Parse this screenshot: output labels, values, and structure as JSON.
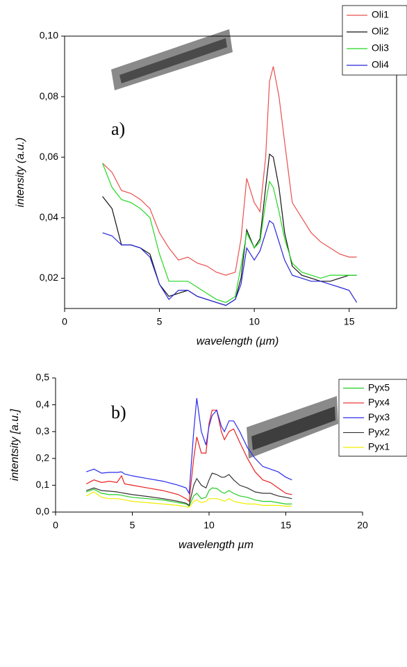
{
  "chart_data": [
    {
      "type": "line",
      "annotation": "a)",
      "xlabel": "wavelength (µm)",
      "ylabel": "intensity (a.u.)",
      "xlim": [
        0,
        17.5
      ],
      "xticks": [
        0,
        5,
        10,
        15
      ],
      "ylim": [
        0.01,
        0.1
      ],
      "yticks": [
        {
          "value": 0.02,
          "label": "0,02"
        },
        {
          "value": 0.04,
          "label": "0,04"
        },
        {
          "value": 0.06,
          "label": "0,06"
        },
        {
          "value": 0.08,
          "label": "0,08"
        },
        {
          "value": 0.1,
          "label": "0,10"
        }
      ],
      "x": [
        2,
        2.5,
        3,
        3.5,
        4,
        4.5,
        5,
        5.5,
        6,
        6.5,
        7,
        7.5,
        8,
        8.5,
        9,
        9.3,
        9.6,
        10,
        10.3,
        10.6,
        10.8,
        11,
        11.3,
        11.6,
        12,
        12.5,
        13,
        13.5,
        14,
        14.5,
        15,
        15.4
      ],
      "series": [
        {
          "name": "Oli1",
          "color": "#e8504c",
          "values": [
            0.058,
            0.055,
            0.049,
            0.048,
            0.046,
            0.043,
            0.035,
            0.03,
            0.026,
            0.027,
            0.025,
            0.024,
            0.022,
            0.021,
            0.022,
            0.033,
            0.053,
            0.045,
            0.042,
            0.06,
            0.085,
            0.09,
            0.08,
            0.065,
            0.045,
            0.04,
            0.035,
            0.032,
            0.03,
            0.028,
            0.027,
            0.027
          ]
        },
        {
          "name": "Oli2",
          "color": "#111111",
          "values": [
            0.047,
            0.043,
            0.031,
            0.031,
            0.03,
            0.028,
            0.018,
            0.014,
            0.015,
            0.016,
            0.014,
            0.013,
            0.012,
            0.011,
            0.013,
            0.02,
            0.036,
            0.03,
            0.033,
            0.05,
            0.061,
            0.06,
            0.05,
            0.035,
            0.024,
            0.021,
            0.02,
            0.019,
            0.019,
            0.02,
            0.021,
            0.021
          ]
        },
        {
          "name": "Oli3",
          "color": "#22d822",
          "values": [
            0.058,
            0.05,
            0.046,
            0.045,
            0.043,
            0.04,
            0.028,
            0.019,
            0.019,
            0.019,
            0.017,
            0.015,
            0.013,
            0.012,
            0.014,
            0.024,
            0.035,
            0.03,
            0.032,
            0.045,
            0.052,
            0.05,
            0.042,
            0.033,
            0.025,
            0.022,
            0.021,
            0.02,
            0.021,
            0.021,
            0.021,
            0.021
          ]
        },
        {
          "name": "Oli4",
          "color": "#2424d8",
          "values": [
            0.035,
            0.034,
            0.031,
            0.031,
            0.03,
            0.027,
            0.018,
            0.013,
            0.016,
            0.016,
            0.014,
            0.013,
            0.012,
            0.011,
            0.013,
            0.018,
            0.03,
            0.026,
            0.029,
            0.035,
            0.039,
            0.038,
            0.032,
            0.026,
            0.021,
            0.02,
            0.019,
            0.019,
            0.018,
            0.017,
            0.016,
            0.012
          ]
        }
      ]
    },
    {
      "type": "line",
      "annotation": "b)",
      "xlabel": "wavelength µm",
      "ylabel": "intentsity [a.u.]",
      "xlim": [
        0,
        20
      ],
      "xticks": [
        0,
        5,
        10,
        15,
        20
      ],
      "ylim": [
        0,
        0.5
      ],
      "yticks": [
        {
          "value": 0,
          "label": "0,0"
        },
        {
          "value": 0.1,
          "label": "0,1"
        },
        {
          "value": 0.2,
          "label": "0,2"
        },
        {
          "value": 0.3,
          "label": "0,3"
        },
        {
          "value": 0.4,
          "label": "0,4"
        },
        {
          "value": 0.5,
          "label": "0,5"
        }
      ],
      "x": [
        2,
        2.5,
        3,
        3.5,
        4,
        4.3,
        4.5,
        5,
        6,
        7,
        8,
        8.5,
        8.7,
        9,
        9.2,
        9.5,
        9.8,
        10,
        10.2,
        10.5,
        10.8,
        11,
        11.3,
        11.6,
        12,
        12.5,
        13,
        13.5,
        14,
        14.5,
        15,
        15.4
      ],
      "series": [
        {
          "name": "Pyx5",
          "color": "#22cc22",
          "values": [
            0.075,
            0.085,
            0.07,
            0.065,
            0.065,
            0.063,
            0.06,
            0.055,
            0.05,
            0.045,
            0.035,
            0.03,
            0.022,
            0.06,
            0.07,
            0.05,
            0.055,
            0.08,
            0.09,
            0.088,
            0.075,
            0.07,
            0.08,
            0.07,
            0.06,
            0.055,
            0.045,
            0.04,
            0.04,
            0.035,
            0.03,
            0.03
          ]
        },
        {
          "name": "Pyx4",
          "color": "#e82020",
          "values": [
            0.105,
            0.12,
            0.11,
            0.115,
            0.11,
            0.135,
            0.105,
            0.1,
            0.09,
            0.08,
            0.065,
            0.05,
            0.04,
            0.2,
            0.28,
            0.22,
            0.22,
            0.33,
            0.38,
            0.38,
            0.3,
            0.27,
            0.3,
            0.31,
            0.26,
            0.2,
            0.15,
            0.12,
            0.11,
            0.09,
            0.07,
            0.065
          ]
        },
        {
          "name": "Pyx3",
          "color": "#2a2af0",
          "values": [
            0.15,
            0.16,
            0.145,
            0.148,
            0.148,
            0.15,
            0.142,
            0.135,
            0.125,
            0.115,
            0.1,
            0.09,
            0.07,
            0.3,
            0.425,
            0.3,
            0.25,
            0.32,
            0.36,
            0.38,
            0.32,
            0.3,
            0.34,
            0.34,
            0.3,
            0.24,
            0.2,
            0.17,
            0.16,
            0.15,
            0.13,
            0.12
          ]
        },
        {
          "name": "Pyx2",
          "color": "#333333",
          "values": [
            0.08,
            0.09,
            0.08,
            0.078,
            0.075,
            0.072,
            0.07,
            0.065,
            0.058,
            0.05,
            0.04,
            0.033,
            0.025,
            0.1,
            0.125,
            0.1,
            0.09,
            0.12,
            0.145,
            0.14,
            0.13,
            0.13,
            0.14,
            0.12,
            0.1,
            0.09,
            0.075,
            0.07,
            0.07,
            0.06,
            0.055,
            0.05
          ]
        },
        {
          "name": "Pyx1",
          "color": "#eeee00",
          "values": [
            0.06,
            0.075,
            0.055,
            0.05,
            0.05,
            0.048,
            0.045,
            0.04,
            0.035,
            0.03,
            0.025,
            0.02,
            0.018,
            0.04,
            0.045,
            0.035,
            0.04,
            0.05,
            0.05,
            0.05,
            0.045,
            0.04,
            0.05,
            0.04,
            0.035,
            0.03,
            0.03,
            0.025,
            0.025,
            0.025,
            0.022,
            0.022
          ]
        }
      ]
    }
  ]
}
